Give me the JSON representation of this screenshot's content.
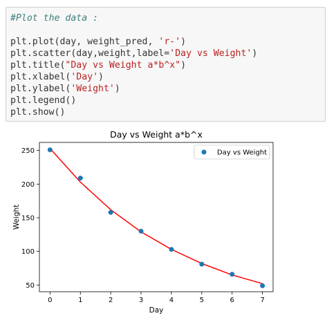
{
  "code_cell": {
    "comment": "#Plot the data :",
    "lines": [
      {
        "pre": "plt.plot(day, weight_pred, ",
        "str": "'r-'",
        "post": ")"
      },
      {
        "pre": "plt.scatter(day,weight,label=",
        "str": "'Day vs Weight'",
        "post": ")"
      },
      {
        "pre": "plt.title(",
        "str": "\"Day vs Weight a*b^x\"",
        "post": ")"
      },
      {
        "pre": "plt.xlabel(",
        "str": "'Day'",
        "post": ")"
      },
      {
        "pre": "plt.ylabel(",
        "str": "'Weight'",
        "post": ")"
      },
      {
        "pre": "plt.legend()",
        "str": "",
        "post": ""
      },
      {
        "pre": "plt.show()",
        "str": "",
        "post": ""
      }
    ]
  },
  "chart_data": {
    "type": "scatter",
    "title": "Day vs Weight a*b^x",
    "xlabel": "Day",
    "ylabel": "Weight",
    "xlim": [
      -0.35,
      7.35
    ],
    "ylim": [
      40,
      262
    ],
    "xticks": [
      0,
      1,
      2,
      3,
      4,
      5,
      6,
      7
    ],
    "yticks": [
      50,
      100,
      150,
      200,
      250
    ],
    "grid": false,
    "legend_position": "top-right",
    "series": [
      {
        "name": "Day vs Weight",
        "kind": "scatter",
        "color": "#1f77b4",
        "x": [
          0,
          1,
          2,
          3,
          4,
          5,
          6,
          7
        ],
        "y": [
          251,
          209,
          158,
          130,
          103,
          81,
          66,
          49
        ]
      },
      {
        "kind": "line",
        "color": "#ff0000",
        "x": [
          0,
          1,
          2,
          3,
          4,
          5,
          6,
          7
        ],
        "y": [
          253,
          203,
          162,
          129,
          103,
          82,
          65,
          52
        ]
      }
    ]
  }
}
